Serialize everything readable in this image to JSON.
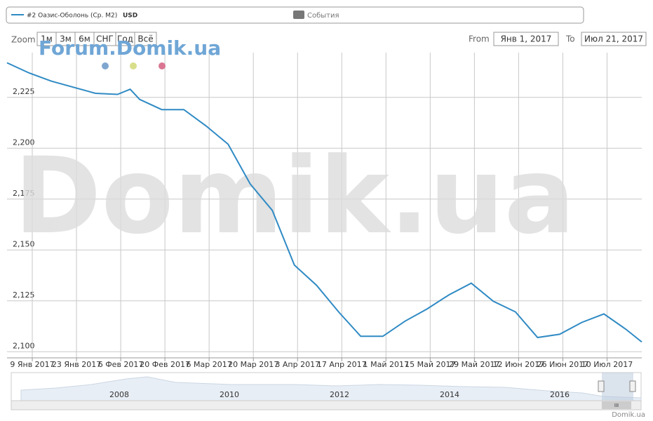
{
  "legend": {
    "series_label": "#2 Оазис-Оболонь (Ср. М2)",
    "unit": "USD",
    "events": "События"
  },
  "zoom": {
    "label": "Zoom",
    "buttons": [
      "1м",
      "3м",
      "6м",
      "СНГ",
      "Год",
      "Всё"
    ]
  },
  "range": {
    "from_label": "From",
    "from": "Янв 1, 2017",
    "to_label": "To",
    "to": "Июл 21, 2017"
  },
  "watermark": {
    "forum": "Forum.Domik.ua",
    "big": "Domik.ua"
  },
  "navigator": {
    "years": [
      "2008",
      "2010",
      "2012",
      "2014",
      "2016"
    ],
    "handle": "III"
  },
  "credits": "Domik.ua",
  "chart_data": {
    "type": "line",
    "grid": true,
    "x": [
      "2017-01-01",
      "2017-01-08",
      "2017-01-15",
      "2017-01-22",
      "2017-01-29",
      "2017-02-05",
      "2017-02-09",
      "2017-02-12",
      "2017-02-19",
      "2017-02-26",
      "2017-03-05",
      "2017-03-12",
      "2017-03-19",
      "2017-03-26",
      "2017-04-02",
      "2017-04-09",
      "2017-04-16",
      "2017-04-23",
      "2017-04-30",
      "2017-05-07",
      "2017-05-14",
      "2017-05-21",
      "2017-05-28",
      "2017-06-04",
      "2017-06-11",
      "2017-06-18",
      "2017-06-25",
      "2017-07-02",
      "2017-07-09",
      "2017-07-16",
      "2017-07-21"
    ],
    "series": [
      {
        "name": "#2 Оазис-Оболонь (Ср. М2)",
        "color": "#2f8ac4",
        "values": [
          2242,
          2237,
          2233,
          2230,
          2227,
          2226.5,
          2229,
          2224,
          2219,
          2219,
          2211,
          2202,
          2182.5,
          2169.5,
          2142.6,
          2132.7,
          2119.6,
          2107.6,
          2107.6,
          2115,
          2121,
          2128,
          2133.7,
          2124.8,
          2119.6,
          2107,
          2108.6,
          2114.4,
          2118.6,
          2111,
          2104.8
        ]
      }
    ],
    "xlim": [
      "2017-01-01",
      "2017-07-21"
    ],
    "xticks": [
      {
        "value": "2017-01-09",
        "label": "9 Янв 2017"
      },
      {
        "value": "2017-01-23",
        "label": "23 Янв 2017"
      },
      {
        "value": "2017-02-06",
        "label": "6 Фев 2017"
      },
      {
        "value": "2017-02-20",
        "label": "20 Фев 2017"
      },
      {
        "value": "2017-03-06",
        "label": "6 Мар 2017"
      },
      {
        "value": "2017-03-20",
        "label": "20 Мар 2017"
      },
      {
        "value": "2017-04-03",
        "label": "3 Апр 2017"
      },
      {
        "value": "2017-04-17",
        "label": "17 Апр 2017"
      },
      {
        "value": "2017-05-01",
        "label": "1 Май 2017"
      },
      {
        "value": "2017-05-15",
        "label": "15 Май 2017"
      },
      {
        "value": "2017-05-29",
        "label": "29 Май 2017"
      },
      {
        "value": "2017-06-12",
        "label": "12 Июн 2017"
      },
      {
        "value": "2017-06-26",
        "label": "26 Июн 2017"
      },
      {
        "value": "2017-07-10",
        "label": "10 Июл 2017"
      }
    ],
    "ylim": [
      2097,
      2247
    ],
    "yticks": [
      {
        "value": 2100,
        "label": "2,100"
      },
      {
        "value": 2125,
        "label": "2,125"
      },
      {
        "value": 2150,
        "label": "2,150"
      },
      {
        "value": 2175,
        "label": "2,175"
      },
      {
        "value": 2200,
        "label": "2,200"
      },
      {
        "value": 2225,
        "label": "2,225"
      }
    ]
  }
}
